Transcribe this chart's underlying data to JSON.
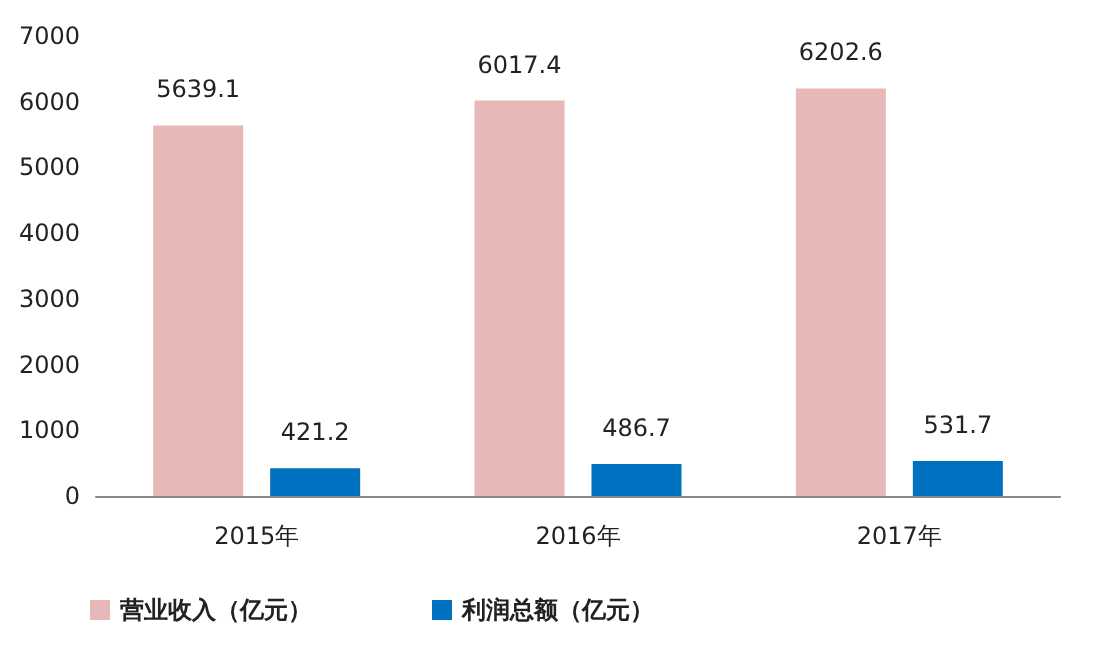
{
  "chart_data": {
    "type": "bar",
    "categories": [
      "2015年",
      "2016年",
      "2017年"
    ],
    "series": [
      {
        "name": "营业收入（亿元）",
        "color": "#e6b9b8",
        "values": [
          5639.1,
          6017.4,
          6202.6
        ]
      },
      {
        "name": "利润总额（亿元）",
        "color": "#0070c0",
        "values": [
          421.2,
          486.7,
          531.7
        ]
      }
    ],
    "ylim": [
      0,
      7000
    ],
    "yticks": [
      0,
      1000,
      2000,
      3000,
      4000,
      5000,
      6000,
      7000
    ],
    "grid": false,
    "legend": "bottom",
    "data_labels": true
  }
}
